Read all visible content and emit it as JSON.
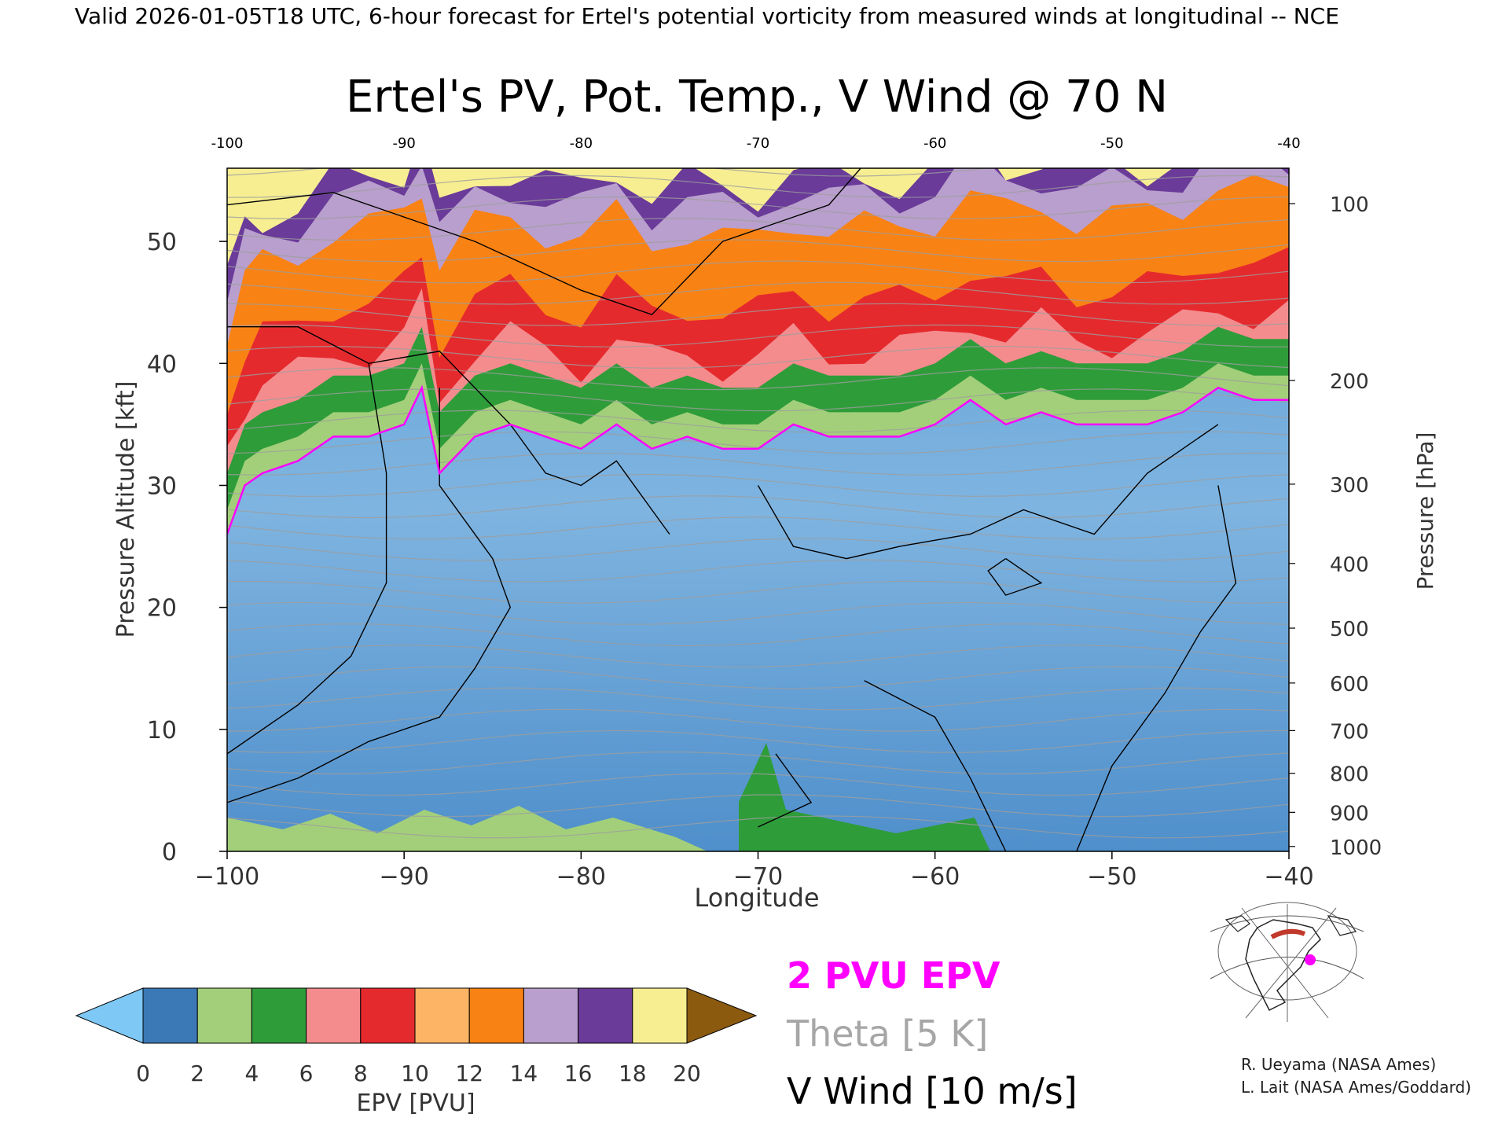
{
  "header": {
    "valid_line": "Valid 2026-01-05T18 UTC, 6-hour forecast for Ertel's potential vorticity from measured winds at longitudinal -- NCE"
  },
  "chart_data": {
    "type": "heatmap",
    "title": "Ertel's PV, Pot. Temp., V Wind @ 70 N",
    "xlabel": "Longitude",
    "ylabel_left": "Pressure Altitude [kft]",
    "ylabel_right": "Pressure [hPa]",
    "xlim": [
      -100,
      -40
    ],
    "ylim_kft": [
      0,
      56
    ],
    "x_ticks": [
      -100,
      -90,
      -80,
      -70,
      -60,
      -50,
      -40
    ],
    "x_tick_labels": [
      "−100",
      "−90",
      "−80",
      "−70",
      "−60",
      "−50",
      "−40"
    ],
    "top_tick_labels": [
      "-100",
      "-90",
      "-80",
      "-70",
      "-60",
      "-50",
      "-40"
    ],
    "y_ticks_kft": [
      0,
      10,
      20,
      30,
      40,
      50
    ],
    "pressure_ticks": [
      {
        "label": "100",
        "kft": 53.1
      },
      {
        "label": "200",
        "kft": 38.6
      },
      {
        "label": "300",
        "kft": 30.1
      },
      {
        "label": "400",
        "kft": 23.6
      },
      {
        "label": "500",
        "kft": 18.3
      },
      {
        "label": "600",
        "kft": 13.8
      },
      {
        "label": "700",
        "kft": 9.9
      },
      {
        "label": "800",
        "kft": 6.4
      },
      {
        "label": "900",
        "kft": 3.2
      },
      {
        "label": "1000",
        "kft": 0.4
      }
    ],
    "pv_threshold_2pvu_kft": [
      [
        -100,
        26
      ],
      [
        -99,
        30
      ],
      [
        -98,
        31
      ],
      [
        -96,
        32
      ],
      [
        -94,
        34
      ],
      [
        -92,
        34
      ],
      [
        -90,
        35
      ],
      [
        -89,
        38
      ],
      [
        -88,
        31
      ],
      [
        -86,
        34
      ],
      [
        -84,
        35
      ],
      [
        -82,
        34
      ],
      [
        -80,
        33
      ],
      [
        -78,
        35
      ],
      [
        -76,
        33
      ],
      [
        -74,
        34
      ],
      [
        -72,
        33
      ],
      [
        -70,
        33
      ],
      [
        -68,
        35
      ],
      [
        -66,
        34
      ],
      [
        -64,
        34
      ],
      [
        -62,
        34
      ],
      [
        -60,
        35
      ],
      [
        -58,
        37
      ],
      [
        -56,
        35
      ],
      [
        -54,
        36
      ],
      [
        -52,
        35
      ],
      [
        -50,
        35
      ],
      [
        -48,
        35
      ],
      [
        -46,
        36
      ],
      [
        -44,
        38
      ],
      [
        -42,
        37
      ],
      [
        -40,
        37
      ]
    ],
    "colorbar": {
      "label": "EPV [PVU]",
      "ticks": [
        "0",
        "2",
        "4",
        "6",
        "8",
        "10",
        "12",
        "14",
        "16",
        "18",
        "20"
      ],
      "colors": [
        "#3a78b6",
        "#a3cf7a",
        "#2f9c3a",
        "#f48c8e",
        "#e52a2e",
        "#fdb565",
        "#f98214",
        "#b99fcd",
        "#6a3b99",
        "#f7ee92"
      ],
      "under_color": "#7ec8f5",
      "over_color": "#8b5a0f"
    },
    "legend": {
      "pvu": "2 PVU EPV",
      "theta": "Theta [5 K]",
      "vwind": "V Wind [10 m/s]"
    }
  },
  "credits": {
    "line1": "R. Ueyama (NASA Ames)",
    "line2": "L. Lait (NASA Ames/Goddard)"
  },
  "colors": {
    "pv_contour": "#ff00ff",
    "theta": "#9e9e9e",
    "vwind": "#000000",
    "troposphere": "#6aa8d8"
  },
  "icons": {
    "locator_map": "globe-map-icon"
  }
}
